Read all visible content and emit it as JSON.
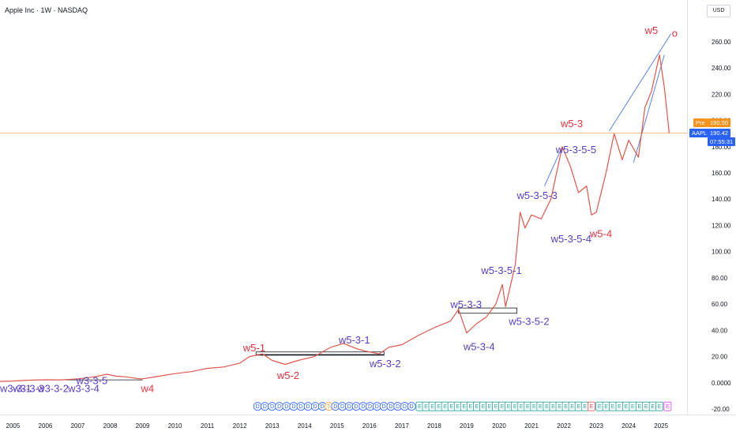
{
  "header": {
    "title": "Apple Inc · 1W · NASDAQ",
    "currency": "USD"
  },
  "colors": {
    "price_line": "#e0564b",
    "wave_red": "#e8313f",
    "wave_purple": "#5b3cc4",
    "trend_blue": "#4b78e6",
    "pre_tag": "#f4931e",
    "last_tag": "#2962ff",
    "hline": "#f5a85c"
  },
  "price_tags": {
    "pre_label": "Pre",
    "pre_value": "190.50",
    "last_label": "AAPL",
    "last_value": "190.42",
    "countdown": "07:55:31"
  },
  "chart_data": {
    "type": "line",
    "title": "Apple Inc · 1W · NASDAQ",
    "xlabel": "",
    "ylabel": "",
    "xlim": [
      2004.6,
      2025.8
    ],
    "ylim": [
      -20,
      275
    ],
    "y_ticks": [
      "260.00",
      "240.00",
      "220.00",
      "200.00",
      "180.00",
      "160.00",
      "140.00",
      "120.00",
      "100.00",
      "80.00",
      "60.00",
      "40.00",
      "20.00",
      "0.0000",
      "-20.00"
    ],
    "y_tick_values": [
      260,
      240,
      220,
      200,
      180,
      160,
      140,
      120,
      100,
      80,
      60,
      40,
      20,
      0,
      -20
    ],
    "x_ticks": [
      "2005",
      "2006",
      "2007",
      "2008",
      "2009",
      "2010",
      "2011",
      "2012",
      "2013",
      "2014",
      "2015",
      "2016",
      "2017",
      "2018",
      "2019",
      "2020",
      "2021",
      "2022",
      "2023",
      "2024",
      "2025"
    ],
    "x_tick_values": [
      2005,
      2006,
      2007,
      2008,
      2009,
      2010,
      2011,
      2012,
      2013,
      2014,
      2015,
      2016,
      2017,
      2018,
      2019,
      2020,
      2021,
      2022,
      2023,
      2024,
      2025
    ],
    "series": [
      {
        "x": [
          2004.6,
          2005.0,
          2005.5,
          2006.0,
          2006.5,
          2007.0,
          2007.5,
          2007.9,
          2008.2,
          2008.5,
          2008.9,
          2009.0,
          2009.5,
          2010.0,
          2010.5,
          2011.0,
          2011.5,
          2012.0,
          2012.3,
          2012.7,
          2013.0,
          2013.4,
          2013.8,
          2014.3,
          2014.8,
          2015.2,
          2015.6,
          2015.9,
          2016.3,
          2016.6,
          2017.0,
          2017.5,
          2018.0,
          2018.5,
          2018.75,
          2019.0,
          2019.3,
          2019.6,
          2019.9,
          2020.1,
          2020.2,
          2020.5,
          2020.65,
          2020.8,
          2021.0,
          2021.3,
          2021.6,
          2021.95,
          2022.2,
          2022.45,
          2022.7,
          2022.85,
          2023.0,
          2023.3,
          2023.55,
          2023.8,
          2024.0,
          2024.3,
          2024.5,
          2024.7,
          2024.95,
          2025.1,
          2025.25
        ],
        "y": [
          1,
          1.3,
          2,
          2.3,
          2.2,
          3,
          4.5,
          6.5,
          5,
          4.5,
          3,
          3,
          5,
          7,
          8.5,
          11,
          12,
          15,
          20,
          22,
          17,
          14,
          17,
          20,
          27,
          30,
          26,
          24,
          22,
          27,
          29,
          36,
          42,
          47,
          56,
          38,
          45,
          50,
          60,
          75,
          58,
          90,
          130,
          118,
          128,
          125,
          140,
          180,
          165,
          145,
          150,
          128,
          130,
          160,
          190,
          170,
          185,
          172,
          210,
          222,
          250,
          225,
          190.42
        ]
      }
    ],
    "wave_labels": [
      {
        "text": "w5",
        "x": 2024.5,
        "y": 266,
        "color": "red"
      },
      {
        "text": "o",
        "x": 2025.33,
        "y": 264,
        "color": "red"
      },
      {
        "text": "w5-3",
        "x": 2021.9,
        "y": 195,
        "color": "red"
      },
      {
        "text": "w5-3-5-5",
        "x": 2021.75,
        "y": 175,
        "color": "purple"
      },
      {
        "text": "w5-3-5-3",
        "x": 2020.55,
        "y": 140,
        "color": "purple"
      },
      {
        "text": "w5-3-5-4",
        "x": 2021.6,
        "y": 107,
        "color": "purple"
      },
      {
        "text": "w5-4",
        "x": 2022.8,
        "y": 111,
        "color": "red"
      },
      {
        "text": "w5-3-5-1",
        "x": 2019.45,
        "y": 83,
        "color": "purple"
      },
      {
        "text": "w5-3-3",
        "x": 2018.5,
        "y": 57,
        "color": "purple"
      },
      {
        "text": "w5-3-5-2",
        "x": 2020.3,
        "y": 44,
        "color": "purple"
      },
      {
        "text": "w5-3-4",
        "x": 2018.9,
        "y": 25,
        "color": "purple"
      },
      {
        "text": "w5-3-1",
        "x": 2015.05,
        "y": 30,
        "color": "purple"
      },
      {
        "text": "w5-3-2",
        "x": 2016.0,
        "y": 12,
        "color": "purple"
      },
      {
        "text": "w5-1",
        "x": 2012.1,
        "y": 24,
        "color": "red"
      },
      {
        "text": "w5-2",
        "x": 2013.15,
        "y": 3,
        "color": "red"
      },
      {
        "text": "w4",
        "x": 2008.95,
        "y": -7,
        "color": "red"
      },
      {
        "text": "w3-3-4",
        "x": 2006.7,
        "y": -7,
        "color": "purple"
      },
      {
        "text": "w3-3-5",
        "x": 2006.95,
        "y": -1,
        "color": "purple"
      },
      {
        "text": "w3-3-3",
        "x": 2005.0,
        "y": -7,
        "color": "purple"
      },
      {
        "text": "w3-3-2",
        "x": 2005.75,
        "y": -7,
        "color": "purple"
      },
      {
        "text": "w3-3-1",
        "x": 2004.6,
        "y": -7,
        "color": "purple"
      }
    ],
    "event_markers": {
      "row_y": -18,
      "items": [
        {
          "label": "D",
          "x_start": 2012.55,
          "x_end": 2014.55,
          "count": 10,
          "color": "#2962ff"
        },
        {
          "label": "S",
          "x_start": 2014.75,
          "x_end": 2014.75,
          "count": 1,
          "color": "#f4a629"
        },
        {
          "label": "D",
          "x_start": 2014.95,
          "x_end": 2017.3,
          "count": 12,
          "color": "#2962ff"
        },
        {
          "label": "E",
          "x_start": 2017.55,
          "x_end": 2022.65,
          "count": 27,
          "color": "#26a69a"
        },
        {
          "label": "E",
          "x_start": 2022.85,
          "x_end": 2022.85,
          "count": 1,
          "color": "#ef5350"
        },
        {
          "label": "E",
          "x_start": 2023.1,
          "x_end": 2024.95,
          "count": 10,
          "color": "#26a69a"
        },
        {
          "label": "E",
          "x_start": 2025.2,
          "x_end": 2025.2,
          "count": 1,
          "color": "#e040fb"
        }
      ]
    }
  }
}
